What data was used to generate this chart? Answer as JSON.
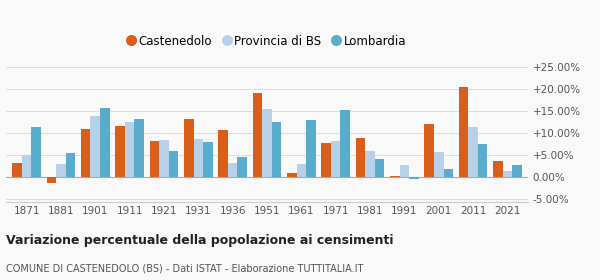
{
  "years": [
    1871,
    1881,
    1901,
    1911,
    1921,
    1931,
    1936,
    1951,
    1961,
    1971,
    1981,
    1991,
    2001,
    2011,
    2021
  ],
  "castenedolo": [
    3.2,
    -1.3,
    11.0,
    11.7,
    8.3,
    13.3,
    10.7,
    19.2,
    1.0,
    7.8,
    9.0,
    0.3,
    12.0,
    20.5,
    3.7
  ],
  "provincia_bs": [
    5.0,
    3.0,
    13.8,
    12.5,
    8.5,
    8.8,
    3.3,
    15.5,
    3.0,
    8.3,
    6.0,
    2.9,
    5.8,
    11.5,
    1.5
  ],
  "lombardia": [
    11.5,
    5.5,
    15.7,
    13.3,
    6.0,
    7.9,
    4.5,
    12.5,
    13.0,
    15.3,
    4.2,
    -0.3,
    1.8,
    7.5,
    2.7
  ],
  "color_castenedolo": "#d85e1a",
  "color_provincia": "#b8d0e8",
  "color_lombardia": "#5aaccc",
  "ylim": [
    -5.5,
    27.5
  ],
  "yticks": [
    -5.0,
    0.0,
    5.0,
    10.0,
    15.0,
    20.0,
    25.0
  ],
  "ytick_labels": [
    "-5.00%",
    "0.00%",
    "+5.00%",
    "+10.00%",
    "+15.00%",
    "+20.00%",
    "+25.00%"
  ],
  "title": "Variazione percentuale della popolazione ai censimenti",
  "subtitle": "COMUNE DI CASTENEDOLO (BS) - Dati ISTAT - Elaborazione TUTTITALIA.IT",
  "legend_labels": [
    "Castenedolo",
    "Provincia di BS",
    "Lombardia"
  ],
  "bar_width": 0.28,
  "background_color": "#f9f9f9",
  "grid_color": "#dddddd"
}
